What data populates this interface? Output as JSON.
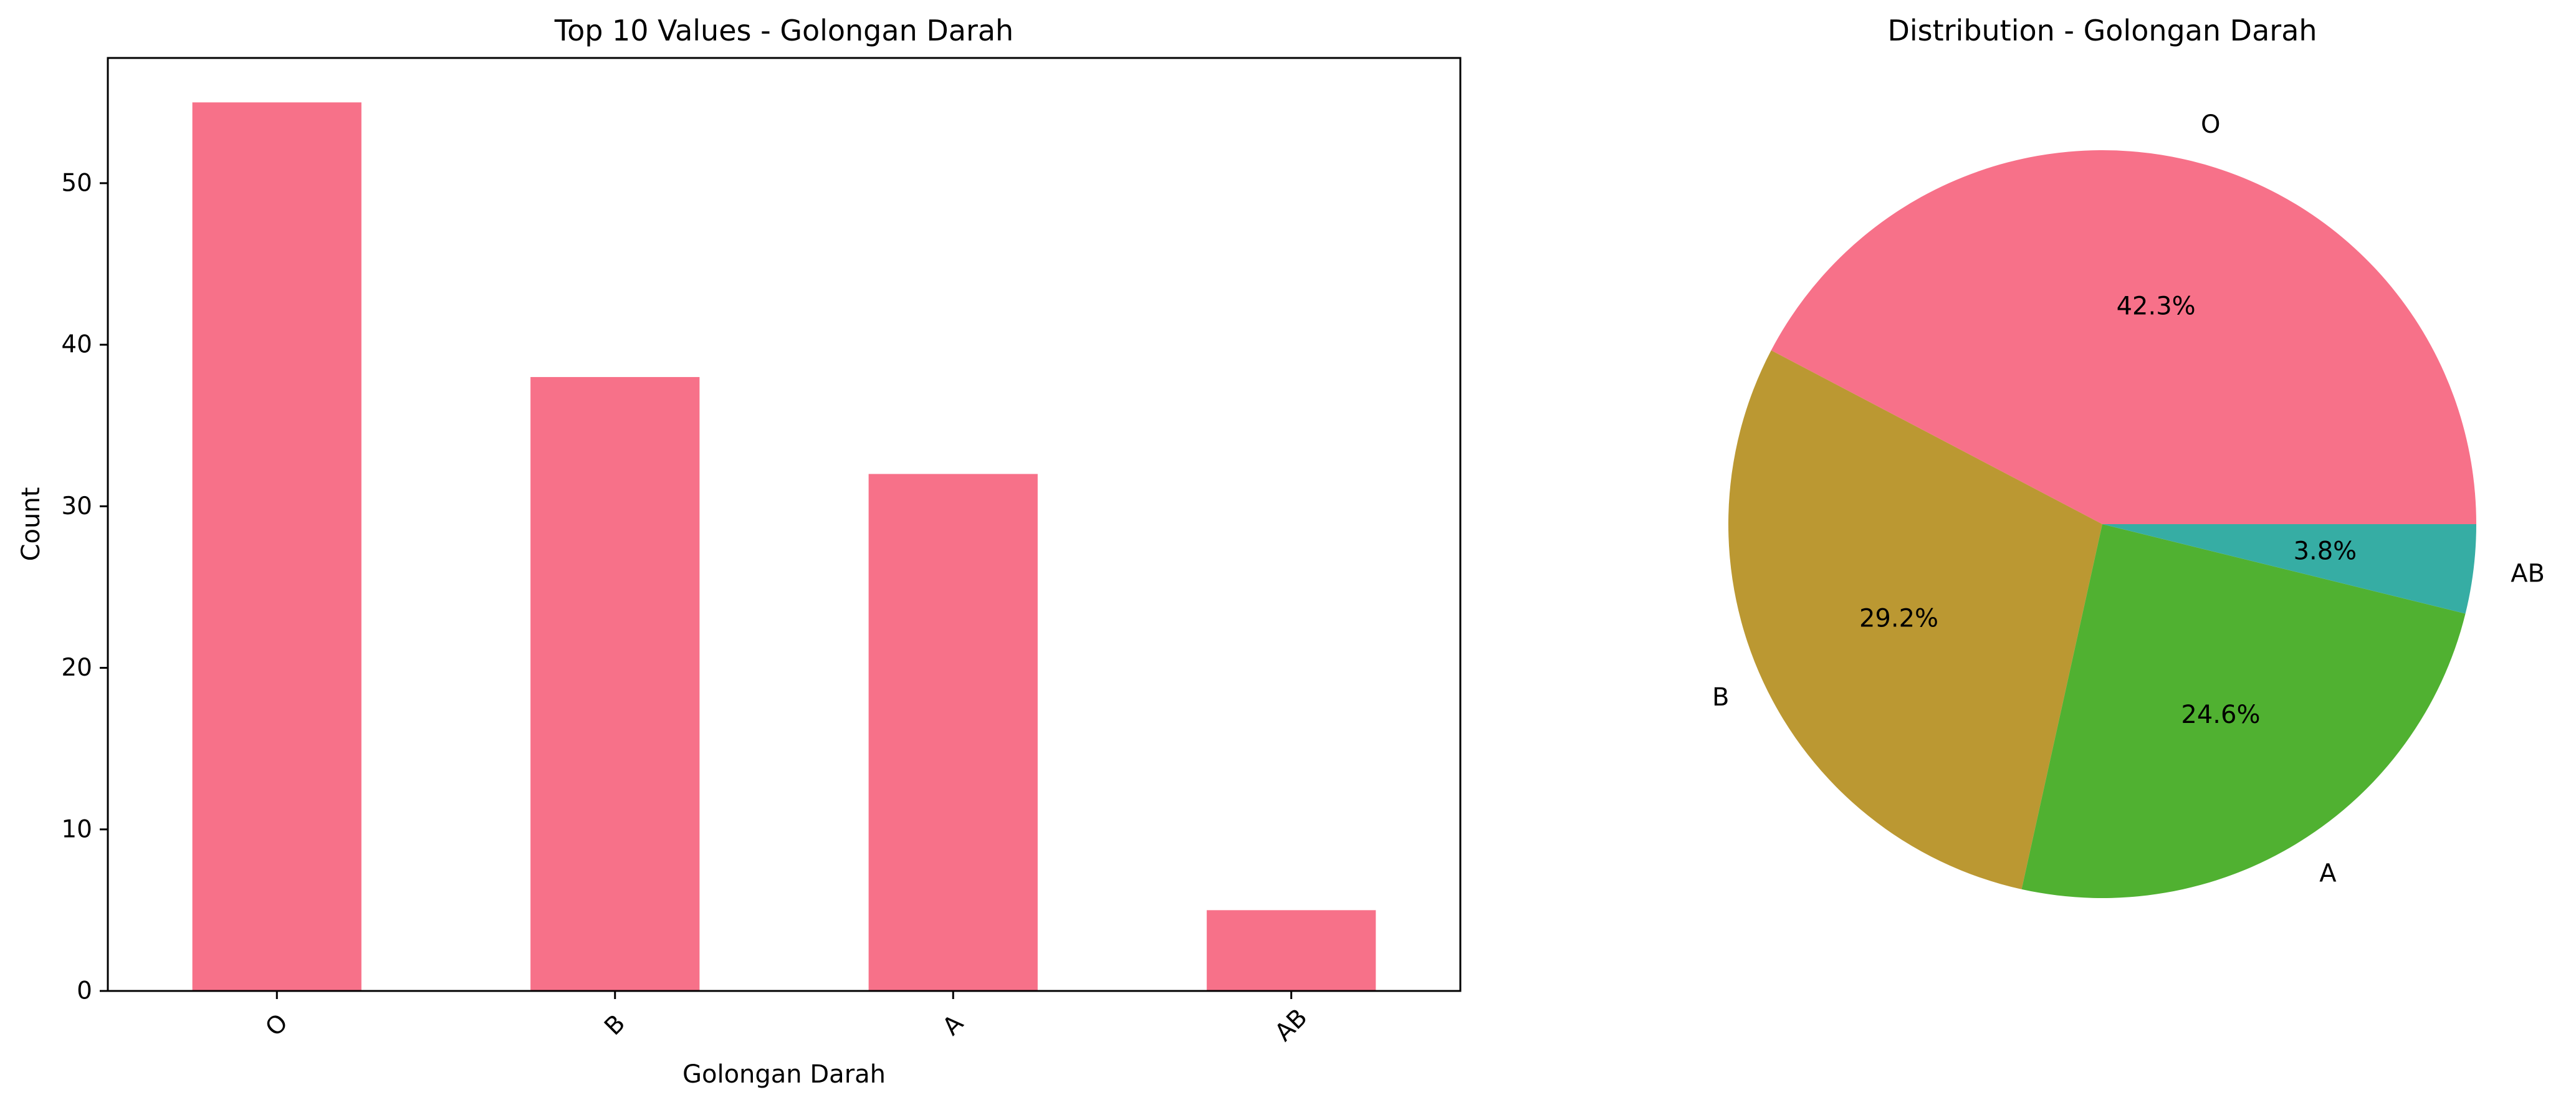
{
  "chart_data": [
    {
      "type": "bar",
      "title": "Top 10 Values - Golongan Darah",
      "xlabel": "Golongan Darah",
      "ylabel": "Count",
      "categories": [
        "O",
        "B",
        "A",
        "AB"
      ],
      "values": [
        55,
        38,
        32,
        5
      ],
      "ylim": [
        0,
        57.75
      ],
      "yticks": [
        0,
        10,
        20,
        30,
        40,
        50
      ],
      "grid": false,
      "color": "#f77189"
    },
    {
      "type": "pie",
      "title": "Distribution - Golongan Darah",
      "labels": [
        "O",
        "B",
        "A",
        "AB"
      ],
      "values": [
        55,
        38,
        32,
        5
      ],
      "percent_labels": [
        "42.3%",
        "29.2%",
        "24.6%",
        "3.8%"
      ],
      "colors": [
        "#f77189",
        "#bb9832",
        "#50b131",
        "#36ada4"
      ]
    }
  ]
}
